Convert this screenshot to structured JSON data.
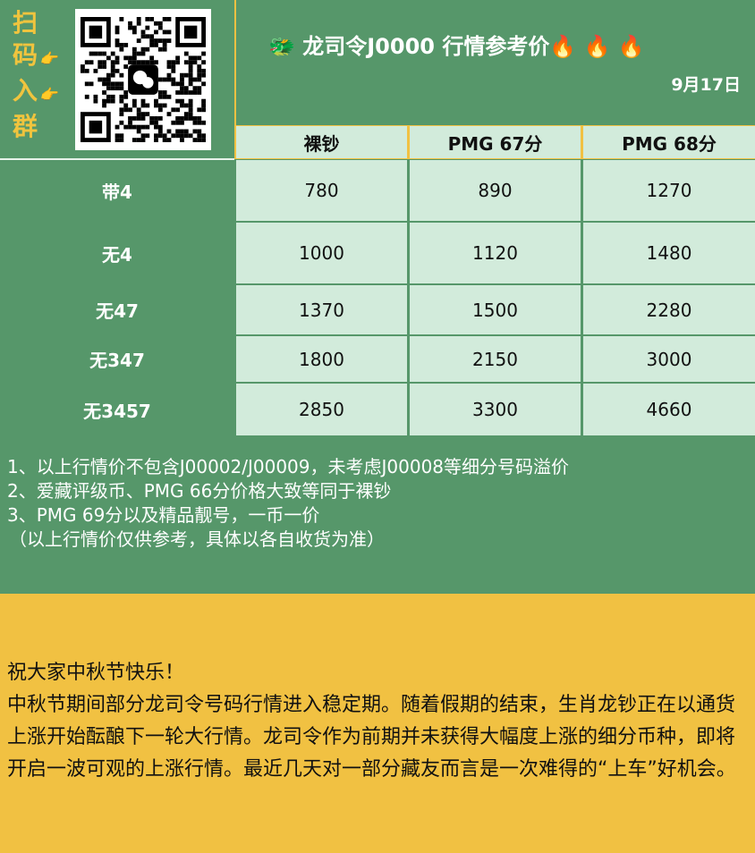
{
  "promo": {
    "chars": [
      "扫",
      "码",
      "入",
      "群"
    ],
    "hand_icon": "backhand-index-pointing-right"
  },
  "qr": {
    "icon": "wechat-icon"
  },
  "header": {
    "title": "龙司令J0000 行情参考价",
    "dragon_icon": "dragon-face",
    "fire_icon": "fire",
    "date": "9月17日"
  },
  "columns": [
    "裸钞",
    "PMG 67分",
    "PMG 68分"
  ],
  "rows": [
    {
      "label": "带4",
      "values": [
        "780",
        "890",
        "1270"
      ]
    },
    {
      "label": "无4",
      "values": [
        "1000",
        "1120",
        "1480"
      ]
    },
    {
      "label": "无47",
      "values": [
        "1370",
        "1500",
        "2280"
      ]
    },
    {
      "label": "无347",
      "values": [
        "1800",
        "2150",
        "3000"
      ]
    },
    {
      "label": "无3457",
      "values": [
        "2850",
        "3300",
        "4660"
      ]
    }
  ],
  "notes": [
    "1、以上行情价不包含J00002/J00009，未考虑J00008等细分号码溢价",
    "2、爱藏评级币、PMG 66分价格大致等同于裸钞",
    "3、PMG 69分以及精品靓号，一币一价",
    "（以上行情价仅供参考，具体以各自收货为准）"
  ],
  "message": [
    "祝大家中秋节快乐！",
    "中秋节期间部分龙司令号码行情进入稳定期。随着假期的结束，生肖龙钞正在以通货上涨开始酝酿下一轮大行情。龙司令作为前期并未获得大幅度上涨的细分币种，即将开启一波可观的上涨行情。最近几天对一部分藏友而言是一次难得的“上车”好机会。"
  ],
  "colors": {
    "green": "#56976a",
    "light_green": "#d2ebdb",
    "yellow": "#f1c142",
    "promo_text": "#f0c43e"
  }
}
